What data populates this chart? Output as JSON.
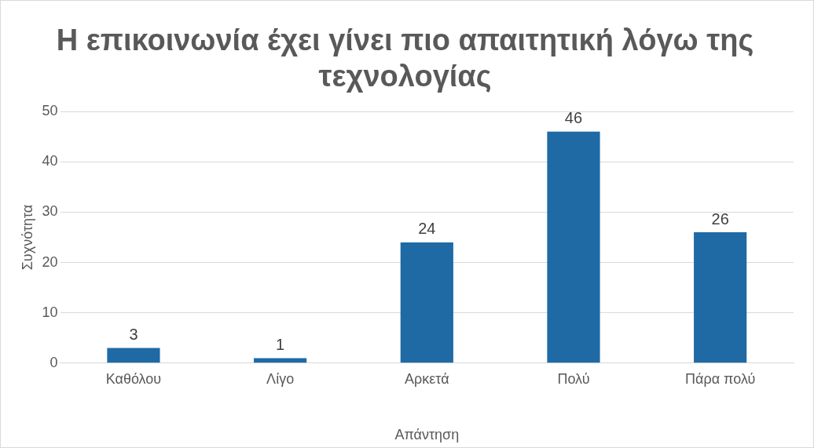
{
  "chart_data": {
    "type": "bar",
    "title": "Η επικοινωνία έχει γίνει πιο απαιτητική λόγω της τεχνολογίας",
    "xlabel": "Απάντηση",
    "ylabel": "Συχνότητα",
    "categories": [
      "Καθόλου",
      "Λίγο",
      "Αρκετά",
      "Πολύ",
      "Πάρα πολύ"
    ],
    "values": [
      3,
      1,
      24,
      46,
      26
    ],
    "color": "#1f6aa5",
    "ylim": [
      0,
      50
    ],
    "yticks": [
      0,
      10,
      20,
      30,
      40,
      50
    ],
    "grid": "y",
    "data_labels": true,
    "legend": false
  }
}
